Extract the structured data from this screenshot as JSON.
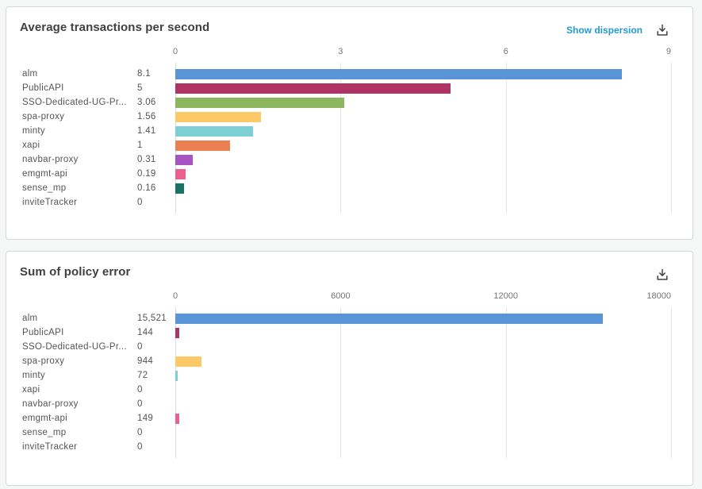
{
  "colors": {
    "page_bg": "#f5f6f6",
    "card_bg": "#ffffff",
    "card_border": "#d8d8d8",
    "title_text": "#404040",
    "label_text": "#545454",
    "value_text": "#545454",
    "tick_text": "#757575",
    "gridline": "#e3e4ea",
    "gridline_zero": "#d9dbe2",
    "link": "#2499d1",
    "icon": "#414141"
  },
  "charts": [
    {
      "title": "Average transactions per second",
      "actions": {
        "show_dispersion_label": "Show dispersion",
        "download_icon": "download-icon"
      },
      "chart_data": {
        "type": "bar",
        "orientation": "horizontal",
        "categories": [
          "alm",
          "PublicAPI",
          "SSO-Dedicated-UG-Pr...",
          "spa-proxy",
          "minty",
          "xapi",
          "navbar-proxy",
          "emgmt-api",
          "sense_mp",
          "inviteTracker"
        ],
        "values": [
          8.1,
          5,
          3.06,
          1.56,
          1.41,
          1,
          0.31,
          0.19,
          0.16,
          0
        ],
        "value_labels": [
          "8.1",
          "5",
          "3.06",
          "1.56",
          "1.41",
          "1",
          "0.31",
          "0.19",
          "0.16",
          "0"
        ],
        "bar_colors": [
          "#5a94d8",
          "#b03366",
          "#8db75f",
          "#fbc968",
          "#7ccfd3",
          "#ed8052",
          "#a753c1",
          "#ed5f8f",
          "#1a7265",
          "#cccccc"
        ],
        "xlim": [
          0,
          9
        ],
        "x_tick_values": [
          0,
          3,
          6,
          9
        ],
        "x_tick_labels": [
          "0",
          "3",
          "6",
          "9"
        ],
        "grid": true,
        "legend": false
      }
    },
    {
      "title": "Sum of policy error",
      "actions": {
        "download_icon": "download-icon"
      },
      "chart_data": {
        "type": "bar",
        "orientation": "horizontal",
        "categories": [
          "alm",
          "PublicAPI",
          "SSO-Dedicated-UG-Pr...",
          "spa-proxy",
          "minty",
          "xapi",
          "navbar-proxy",
          "emgmt-api",
          "sense_mp",
          "inviteTracker"
        ],
        "values": [
          15521,
          144,
          0,
          944,
          72,
          0,
          0,
          149,
          0,
          0
        ],
        "value_labels": [
          "15,521",
          "144",
          "0",
          "944",
          "72",
          "0",
          "0",
          "149",
          "0",
          "0"
        ],
        "bar_colors": [
          "#5a94d8",
          "#b03366",
          "#8db75f",
          "#fbc968",
          "#7ccfd3",
          "#ed8052",
          "#a753c1",
          "#ed5f8f",
          "#1a7265",
          "#cccccc"
        ],
        "xlim": [
          0,
          18000
        ],
        "x_tick_values": [
          0,
          6000,
          12000,
          18000
        ],
        "x_tick_labels": [
          "0",
          "6000",
          "12000",
          "18000"
        ],
        "grid": true,
        "legend": false
      }
    }
  ]
}
